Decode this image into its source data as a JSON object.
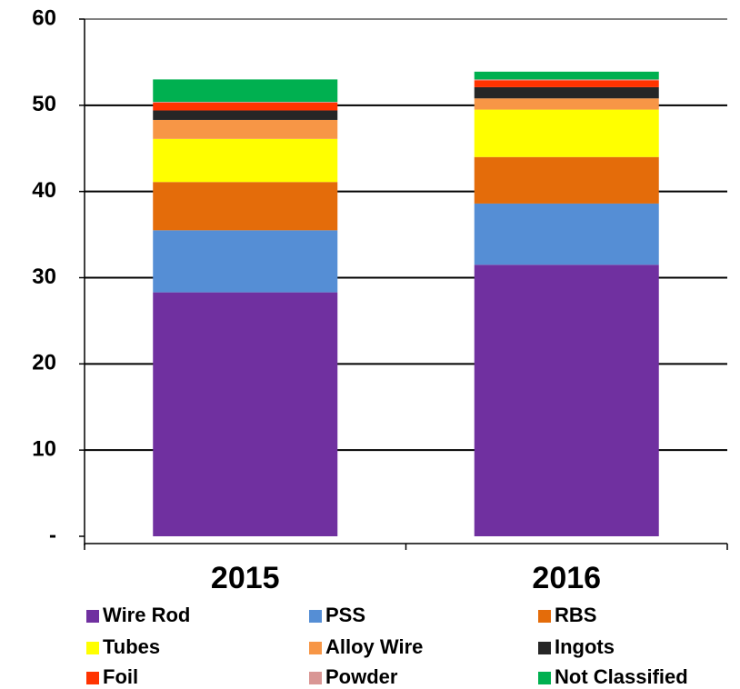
{
  "chart_data": {
    "type": "stacked_bar",
    "categories": [
      "2015",
      "2016"
    ],
    "series": [
      {
        "name": "Wire Rod",
        "color": "#7030a0",
        "values": [
          28.3,
          31.5
        ]
      },
      {
        "name": "PSS",
        "color": "#558ed5",
        "values": [
          7.2,
          7.1
        ]
      },
      {
        "name": "RBS",
        "color": "#e46c0a",
        "values": [
          5.6,
          5.4
        ]
      },
      {
        "name": "Tubes",
        "color": "#ffff00",
        "values": [
          5.0,
          5.5
        ]
      },
      {
        "name": "Alloy Wire",
        "color": "#f79646",
        "values": [
          2.2,
          1.3
        ]
      },
      {
        "name": "Ingots",
        "color": "#262626",
        "values": [
          1.1,
          1.3
        ]
      },
      {
        "name": "Foil",
        "color": "#ff3300",
        "values": [
          0.9,
          0.8
        ]
      },
      {
        "name": "Powder",
        "color": "#d99694",
        "values": [
          0.1,
          0.1
        ]
      },
      {
        "name": "Not Classified",
        "color": "#00b050",
        "values": [
          2.6,
          0.9
        ]
      }
    ],
    "ylim": [
      0,
      60
    ],
    "yticks": [
      {
        "value": 0,
        "label": "-"
      },
      10,
      20,
      30,
      40,
      50,
      60
    ],
    "grid": true
  }
}
